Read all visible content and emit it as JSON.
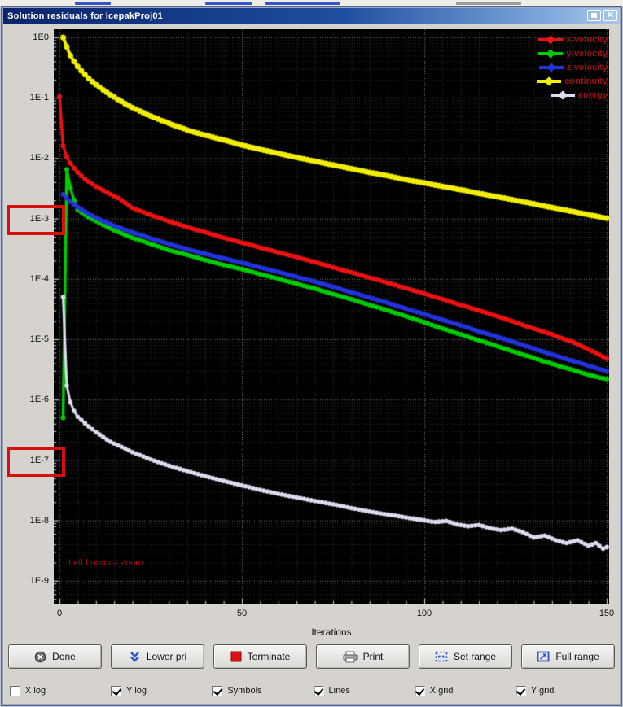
{
  "window": {
    "title": "Solution residuals for IcepakProj01",
    "titlebar_buttons": {
      "close_glyph": "✕"
    }
  },
  "chart_data": {
    "type": "line",
    "title": "Solution residuals for IcepakProj01",
    "xlabel": "Iterations",
    "ylabel": "",
    "x_ticks": [
      "0",
      "50",
      "100",
      "150"
    ],
    "y_ticks": [
      "1E0",
      "1E-1",
      "1E-2",
      "1E-3",
      "1E-4",
      "1E-5",
      "1E-6",
      "1E-7",
      "1E-8",
      "1E-9"
    ],
    "x_range": [
      0,
      151
    ],
    "y_log": true,
    "grid": true,
    "legend_position": "top-right",
    "annotation": "Left button = zoom",
    "series": [
      {
        "name": "x-velocity",
        "color": "#ee1111",
        "width": 3.5,
        "marker": 3,
        "points": [
          [
            0,
            0.105
          ],
          [
            1,
            0.016
          ],
          [
            2,
            0.0105
          ],
          [
            3,
            0.0082
          ],
          [
            4,
            0.0068
          ],
          [
            5,
            0.0058
          ],
          [
            7,
            0.0045
          ],
          [
            10,
            0.0034
          ],
          [
            13,
            0.0027
          ],
          [
            16,
            0.0022
          ],
          [
            20,
            0.0015
          ],
          [
            25,
            0.00115
          ],
          [
            30,
            0.0009
          ],
          [
            35,
            0.00072
          ],
          [
            40,
            0.00059
          ],
          [
            45,
            0.00048
          ],
          [
            50,
            0.0004
          ],
          [
            55,
            0.00033
          ],
          [
            60,
            0.000275
          ],
          [
            65,
            0.00023
          ],
          [
            70,
            0.00019
          ],
          [
            75,
            0.000155
          ],
          [
            80,
            0.000128
          ],
          [
            85,
            0.000105
          ],
          [
            90,
            8.6e-05
          ],
          [
            95,
            7e-05
          ],
          [
            100,
            5.7e-05
          ],
          [
            105,
            4.6e-05
          ],
          [
            110,
            3.7e-05
          ],
          [
            115,
            3e-05
          ],
          [
            120,
            2.4e-05
          ],
          [
            125,
            1.9e-05
          ],
          [
            130,
            1.5e-05
          ],
          [
            135,
            1.2e-05
          ],
          [
            140,
            9.3e-06
          ],
          [
            143,
            7.8e-06
          ],
          [
            146,
            6.4e-06
          ],
          [
            148,
            5.5e-06
          ],
          [
            150,
            4.8e-06
          ]
        ]
      },
      {
        "name": "y-velocity",
        "color": "#00cc00",
        "width": 3.5,
        "marker": 3,
        "points": [
          [
            1,
            5e-07
          ],
          [
            2,
            0.0065
          ],
          [
            3,
            0.0032
          ],
          [
            4,
            0.002
          ],
          [
            5,
            0.0014
          ],
          [
            8,
            0.00105
          ],
          [
            12,
            0.00078
          ],
          [
            16,
            0.0006
          ],
          [
            20,
            0.00048
          ],
          [
            25,
            0.00038
          ],
          [
            30,
            0.0003
          ],
          [
            35,
            0.00025
          ],
          [
            40,
            0.000205
          ],
          [
            45,
            0.00017
          ],
          [
            50,
            0.000145
          ],
          [
            55,
            0.00012
          ],
          [
            60,
            0.0001
          ],
          [
            65,
            8.3e-05
          ],
          [
            70,
            6.9e-05
          ],
          [
            75,
            5.6e-05
          ],
          [
            80,
            4.6e-05
          ],
          [
            85,
            3.7e-05
          ],
          [
            90,
            3e-05
          ],
          [
            95,
            2.4e-05
          ],
          [
            100,
            1.9e-05
          ],
          [
            105,
            1.5e-05
          ],
          [
            110,
            1.2e-05
          ],
          [
            115,
            9.6e-06
          ],
          [
            120,
            7.7e-06
          ],
          [
            125,
            6.1e-06
          ],
          [
            130,
            4.9e-06
          ],
          [
            135,
            3.9e-06
          ],
          [
            140,
            3.2e-06
          ],
          [
            143,
            2.8e-06
          ],
          [
            146,
            2.5e-06
          ],
          [
            148,
            2.3e-06
          ],
          [
            150,
            2.2e-06
          ]
        ]
      },
      {
        "name": "z-velocity",
        "color": "#2233dd",
        "width": 3.5,
        "marker": 3,
        "points": [
          [
            1,
            0.0025
          ],
          [
            3,
            0.0019
          ],
          [
            5,
            0.00155
          ],
          [
            8,
            0.0012
          ],
          [
            12,
            0.0009
          ],
          [
            16,
            0.00072
          ],
          [
            20,
            0.00059
          ],
          [
            25,
            0.00047
          ],
          [
            30,
            0.00038
          ],
          [
            35,
            0.00031
          ],
          [
            40,
            0.00026
          ],
          [
            45,
            0.00022
          ],
          [
            50,
            0.000185
          ],
          [
            55,
            0.000155
          ],
          [
            60,
            0.00013
          ],
          [
            65,
            0.000108
          ],
          [
            70,
            9e-05
          ],
          [
            75,
            7.4e-05
          ],
          [
            80,
            6e-05
          ],
          [
            85,
            4.9e-05
          ],
          [
            90,
            4e-05
          ],
          [
            95,
            3.2e-05
          ],
          [
            100,
            2.6e-05
          ],
          [
            105,
            2.1e-05
          ],
          [
            110,
            1.7e-05
          ],
          [
            115,
            1.35e-05
          ],
          [
            120,
            1.1e-05
          ],
          [
            125,
            8.8e-06
          ],
          [
            130,
            7e-06
          ],
          [
            135,
            5.6e-06
          ],
          [
            140,
            4.5e-06
          ],
          [
            143,
            4e-06
          ],
          [
            146,
            3.5e-06
          ],
          [
            148,
            3.2e-06
          ],
          [
            150,
            3e-06
          ]
        ]
      },
      {
        "name": "continuity",
        "color": "#f2ee00",
        "width": 4,
        "marker": 3.5,
        "points": [
          [
            1,
            1.0
          ],
          [
            2,
            0.7
          ],
          [
            3,
            0.5
          ],
          [
            4,
            0.4
          ],
          [
            5,
            0.33
          ],
          [
            6,
            0.28
          ],
          [
            8,
            0.21
          ],
          [
            10,
            0.165
          ],
          [
            12,
            0.135
          ],
          [
            14,
            0.112
          ],
          [
            16,
            0.094
          ],
          [
            18,
            0.08
          ],
          [
            20,
            0.069
          ],
          [
            24,
            0.053
          ],
          [
            28,
            0.042
          ],
          [
            32,
            0.034
          ],
          [
            36,
            0.028
          ],
          [
            40,
            0.024
          ],
          [
            45,
            0.02
          ],
          [
            50,
            0.0165
          ],
          [
            55,
            0.014
          ],
          [
            60,
            0.012
          ],
          [
            65,
            0.0103
          ],
          [
            70,
            0.0089
          ],
          [
            75,
            0.0077
          ],
          [
            80,
            0.0067
          ],
          [
            85,
            0.0058
          ],
          [
            90,
            0.0051
          ],
          [
            95,
            0.0044
          ],
          [
            100,
            0.0039
          ],
          [
            105,
            0.0034
          ],
          [
            110,
            0.003
          ],
          [
            115,
            0.0026
          ],
          [
            120,
            0.0023
          ],
          [
            125,
            0.002
          ],
          [
            130,
            0.00175
          ],
          [
            135,
            0.00152
          ],
          [
            140,
            0.00133
          ],
          [
            145,
            0.00116
          ],
          [
            150,
            0.00101
          ]
        ]
      },
      {
        "name": "energy",
        "color": "#dcdcf0",
        "width": 3,
        "marker": 2.8,
        "points": [
          [
            1,
            5e-05
          ],
          [
            2,
            1.7e-06
          ],
          [
            3,
            9e-07
          ],
          [
            4,
            6.5e-07
          ],
          [
            5,
            5.2e-07
          ],
          [
            6,
            4.6e-07
          ],
          [
            8,
            3.6e-07
          ],
          [
            10,
            2.9e-07
          ],
          [
            12,
            2.4e-07
          ],
          [
            14,
            2e-07
          ],
          [
            16,
            1.75e-07
          ],
          [
            18,
            1.55e-07
          ],
          [
            20,
            1.35e-07
          ],
          [
            24,
            1.08e-07
          ],
          [
            28,
            8.8e-08
          ],
          [
            32,
            7.4e-08
          ],
          [
            36,
            6.3e-08
          ],
          [
            40,
            5.4e-08
          ],
          [
            45,
            4.5e-08
          ],
          [
            50,
            3.8e-08
          ],
          [
            55,
            3.2e-08
          ],
          [
            60,
            2.75e-08
          ],
          [
            65,
            2.4e-08
          ],
          [
            70,
            2.1e-08
          ],
          [
            75,
            1.85e-08
          ],
          [
            80,
            1.6e-08
          ],
          [
            85,
            1.4e-08
          ],
          [
            90,
            1.25e-08
          ],
          [
            95,
            1.12e-08
          ],
          [
            100,
            1e-08
          ],
          [
            103,
            9.4e-09
          ],
          [
            106,
            9.8e-09
          ],
          [
            109,
            8.6e-09
          ],
          [
            112,
            8e-09
          ],
          [
            115,
            8.4e-09
          ],
          [
            118,
            7.4e-09
          ],
          [
            121,
            6.9e-09
          ],
          [
            124,
            7.3e-09
          ],
          [
            127,
            6.4e-09
          ],
          [
            130,
            5.2e-09
          ],
          [
            133,
            5.6e-09
          ],
          [
            136,
            4.7e-09
          ],
          [
            139,
            4.2e-09
          ],
          [
            142,
            4.7e-09
          ],
          [
            145,
            3.8e-09
          ],
          [
            147,
            4.2e-09
          ],
          [
            149,
            3.4e-09
          ],
          [
            150,
            3.6e-09
          ]
        ]
      }
    ]
  },
  "buttons": [
    {
      "label": "Done",
      "icon": "close-circle-icon"
    },
    {
      "label": "Lower pri",
      "icon": "double-chevron-down-icon"
    },
    {
      "label": "Terminate",
      "icon": "stop-square-icon"
    },
    {
      "label": "Print",
      "icon": "printer-icon"
    },
    {
      "label": "Set range",
      "icon": "set-range-icon"
    },
    {
      "label": "Full range",
      "icon": "full-range-icon"
    }
  ],
  "checkboxes": [
    {
      "label": "X log",
      "checked": false
    },
    {
      "label": "Y log",
      "checked": true
    },
    {
      "label": "Symbols",
      "checked": true
    },
    {
      "label": "Lines",
      "checked": true
    },
    {
      "label": "X grid",
      "checked": true
    },
    {
      "label": "Y grid",
      "checked": true
    }
  ]
}
